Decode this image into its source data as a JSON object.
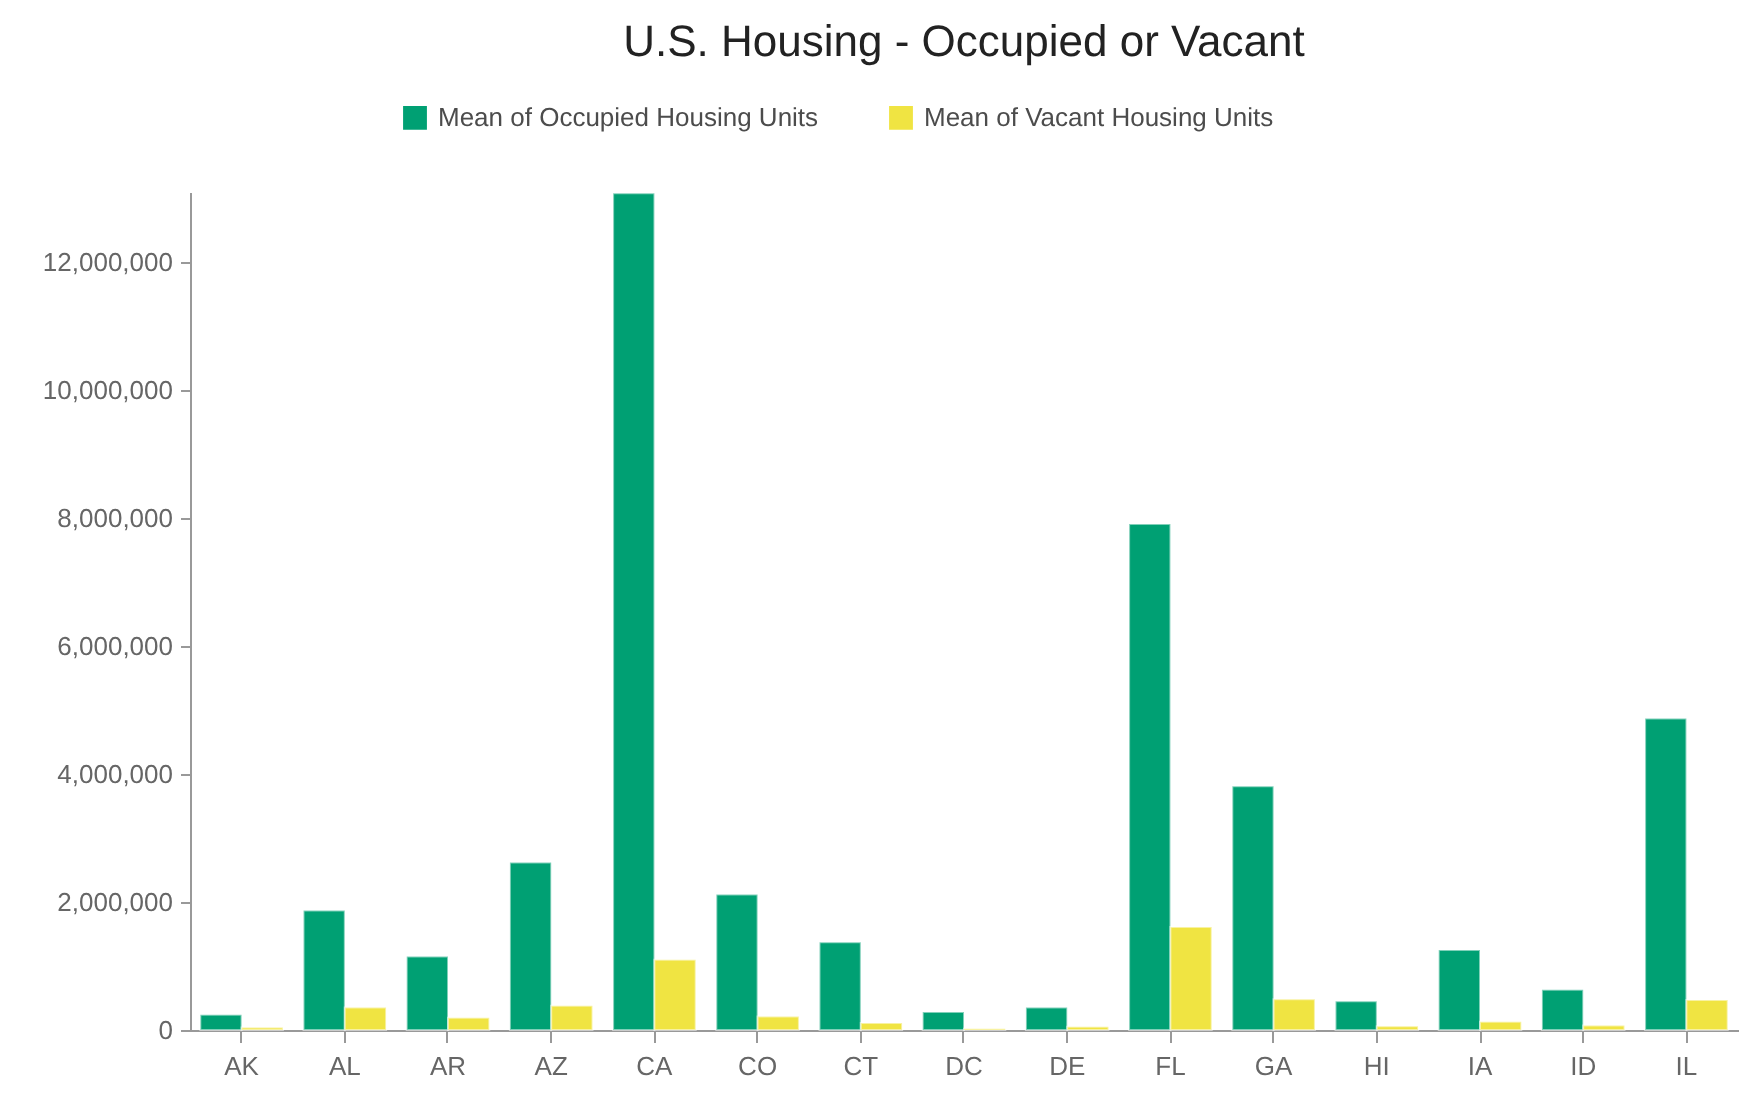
{
  "chart_data": {
    "type": "bar",
    "title": "U.S. Housing - Occupied or Vacant",
    "categories": [
      "AK",
      "AL",
      "AR",
      "AZ",
      "CA",
      "CO",
      "CT",
      "DC",
      "DE",
      "FL",
      "GA",
      "HI",
      "IA",
      "ID",
      "IL"
    ],
    "series": [
      {
        "name": "Mean of Occupied Housing Units",
        "color": "#00a073",
        "values": [
          240000,
          1870000,
          1150000,
          2620000,
          13080000,
          2120000,
          1370000,
          280000,
          350000,
          7910000,
          3810000,
          450000,
          1250000,
          630000,
          4870000
        ]
      },
      {
        "name": "Mean of Vacant Housing Units",
        "color": "#f0e442",
        "values": [
          40000,
          350000,
          190000,
          380000,
          1100000,
          210000,
          110000,
          20000,
          50000,
          1610000,
          480000,
          60000,
          130000,
          70000,
          470000
        ]
      }
    ],
    "ylim": [
      0,
      13100000
    ],
    "yticks": [
      0,
      {
        "value": 2000000,
        "label": "2,000,000"
      },
      {
        "value": 4000000,
        "label": "4,000,000"
      },
      {
        "value": 6000000,
        "label": "6,000,000"
      },
      {
        "value": 8000000,
        "label": "8,000,000"
      },
      {
        "value": 10000000,
        "label": "10,000,000"
      },
      {
        "value": 12000000,
        "label": "12,000,000"
      }
    ],
    "grid": false,
    "legend": "top"
  }
}
